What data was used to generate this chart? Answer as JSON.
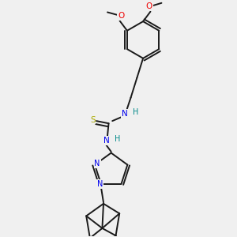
{
  "bg_color": "#f0f0f0",
  "bond_color": "#1a1a1a",
  "atom_colors": {
    "N": "#0000ee",
    "O": "#ee0000",
    "S": "#aaaa00",
    "H": "#008888",
    "C": "#1a1a1a"
  },
  "lw": 1.4
}
